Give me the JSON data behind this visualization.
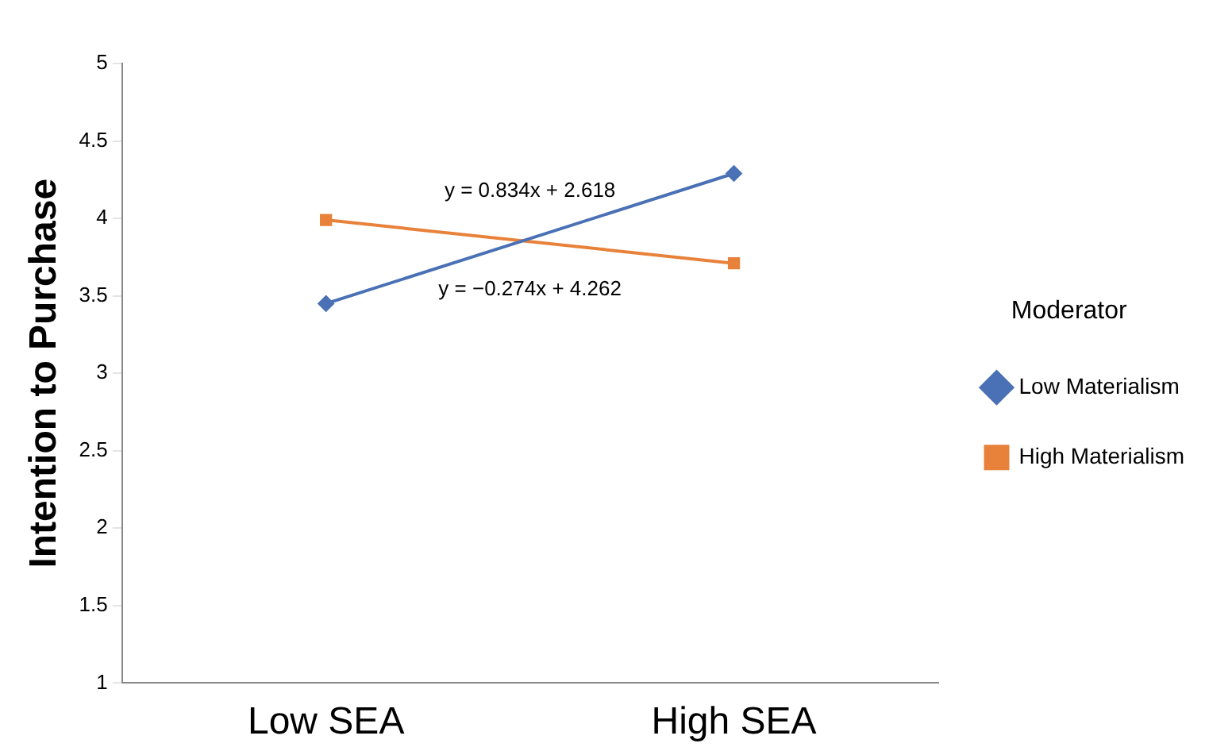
{
  "chart_data": {
    "type": "line",
    "ylabel": "Intention to Purchase",
    "legend_title": "Moderator",
    "categories": [
      "Low SEA",
      "High SEA"
    ],
    "series": [
      {
        "name": "Low Materialism",
        "color": "#4a71b5",
        "values": [
          3.45,
          4.29
        ],
        "marker": "diamond"
      },
      {
        "name": "High Materialism",
        "color": "#e8823a",
        "values": [
          3.99,
          3.71
        ],
        "marker": "square"
      }
    ],
    "annotations": [
      "y = 0.834x + 2.618",
      "y = −0.274x + 4.262"
    ],
    "ylim": [
      1,
      5
    ],
    "yticks": [
      1,
      1.5,
      2,
      2.5,
      3,
      3.5,
      4,
      4.5,
      5
    ],
    "grid": false,
    "legend": "right"
  }
}
